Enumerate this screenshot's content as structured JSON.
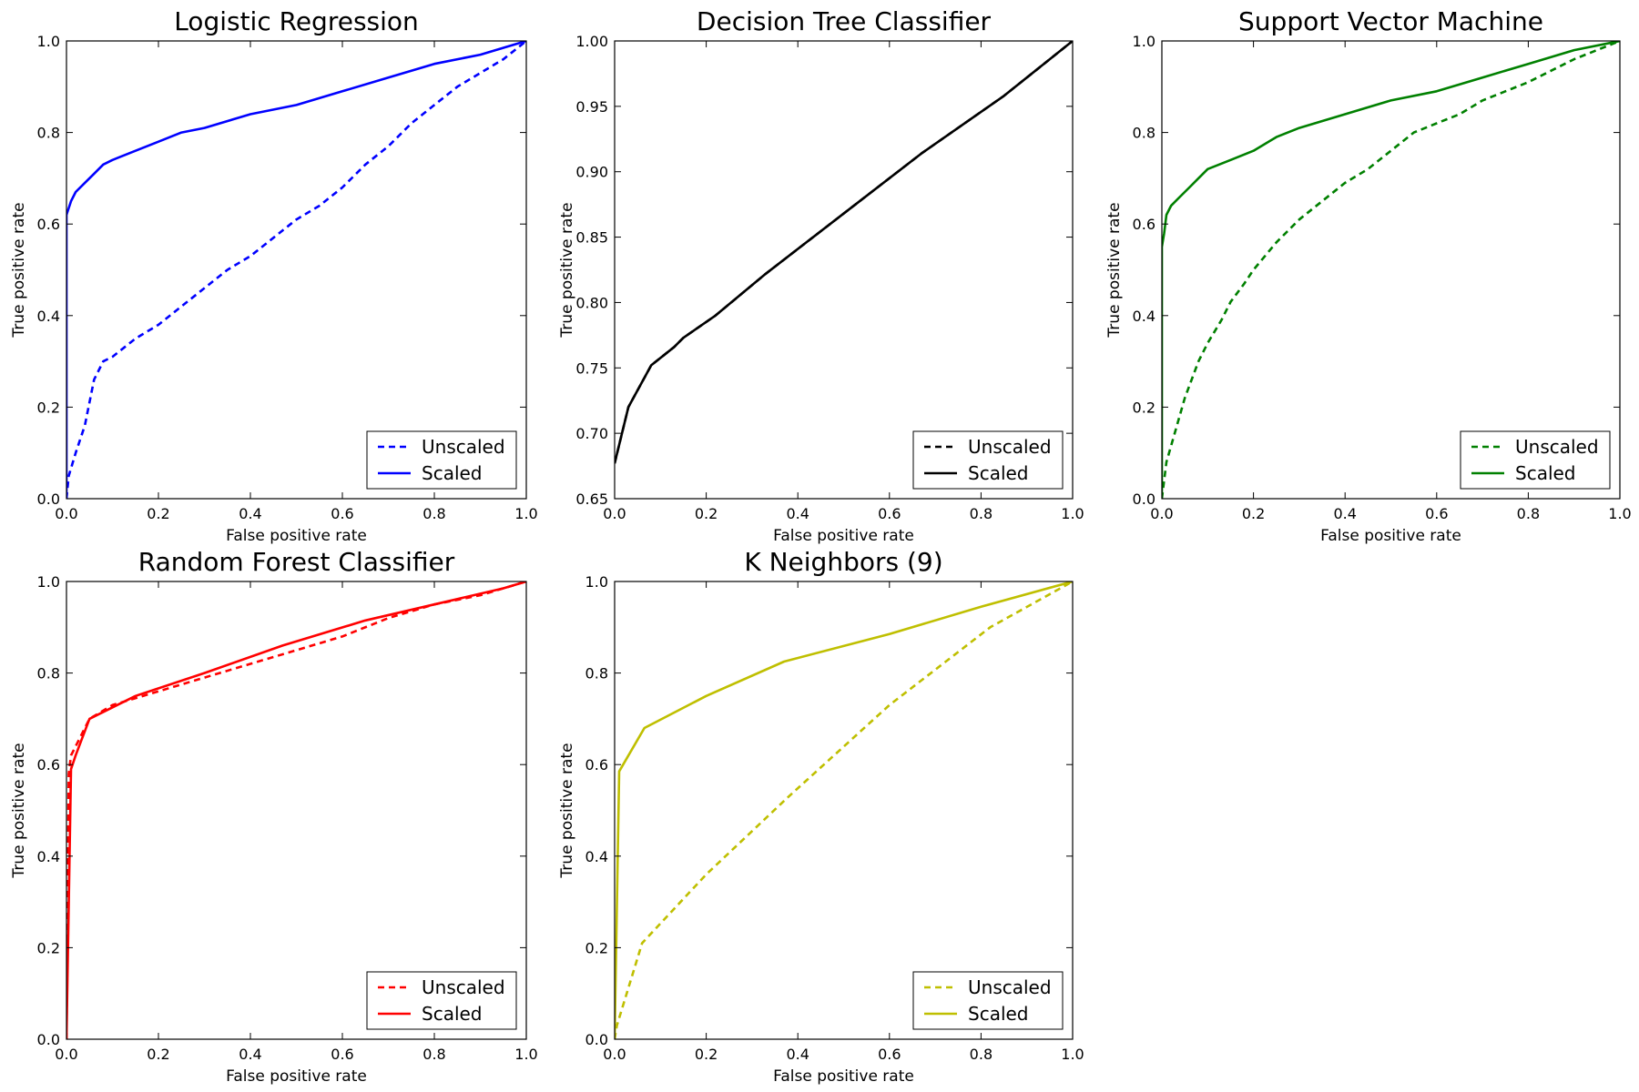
{
  "chart_data": [
    {
      "type": "line",
      "title": "Logistic Regression",
      "xlabel": "False positive rate",
      "ylabel": "True positive rate",
      "xlim": [
        0.0,
        1.0
      ],
      "ylim": [
        0.0,
        1.0
      ],
      "xticks": [
        "0.0",
        "0.2",
        "0.4",
        "0.6",
        "0.8",
        "1.0"
      ],
      "yticks": [
        "0.0",
        "0.2",
        "0.4",
        "0.6",
        "0.8",
        "1.0"
      ],
      "color": "#0000ff",
      "legend_position": "lower right",
      "series": [
        {
          "name": "Unscaled",
          "style": "dashed",
          "x": [
            0.0,
            0.005,
            0.02,
            0.04,
            0.06,
            0.08,
            0.1,
            0.15,
            0.2,
            0.25,
            0.3,
            0.35,
            0.4,
            0.45,
            0.5,
            0.55,
            0.6,
            0.65,
            0.7,
            0.75,
            0.8,
            0.85,
            0.9,
            0.95,
            1.0
          ],
          "y": [
            0.0,
            0.05,
            0.1,
            0.16,
            0.26,
            0.3,
            0.31,
            0.35,
            0.38,
            0.42,
            0.46,
            0.5,
            0.53,
            0.57,
            0.61,
            0.64,
            0.68,
            0.73,
            0.77,
            0.82,
            0.86,
            0.9,
            0.93,
            0.96,
            1.0
          ]
        },
        {
          "name": "Scaled",
          "style": "solid",
          "x": [
            0.0,
            0.0,
            0.01,
            0.02,
            0.04,
            0.06,
            0.08,
            0.1,
            0.15,
            0.2,
            0.25,
            0.3,
            0.4,
            0.5,
            0.6,
            0.7,
            0.8,
            0.9,
            1.0
          ],
          "y": [
            0.0,
            0.62,
            0.65,
            0.67,
            0.69,
            0.71,
            0.73,
            0.74,
            0.76,
            0.78,
            0.8,
            0.81,
            0.84,
            0.86,
            0.89,
            0.92,
            0.95,
            0.97,
            1.0
          ]
        }
      ]
    },
    {
      "type": "line",
      "title": "Decision Tree Classifier",
      "xlabel": "False positive rate",
      "ylabel": "True positive rate",
      "xlim": [
        0.0,
        1.0
      ],
      "ylim": [
        0.65,
        1.0
      ],
      "xticks": [
        "0.0",
        "0.2",
        "0.4",
        "0.6",
        "0.8",
        "1.0"
      ],
      "yticks": [
        "0.65",
        "0.70",
        "0.75",
        "0.80",
        "0.85",
        "0.90",
        "0.95",
        "1.00"
      ],
      "color": "#000000",
      "legend_position": "lower right",
      "series": [
        {
          "name": "Unscaled",
          "style": "dashed",
          "x": [
            0.0,
            0.03,
            0.08,
            0.13,
            0.15,
            0.22,
            0.33,
            0.5,
            0.67,
            0.85,
            1.0
          ],
          "y": [
            0.677,
            0.72,
            0.752,
            0.766,
            0.773,
            0.79,
            0.822,
            0.868,
            0.914,
            0.958,
            1.0
          ]
        },
        {
          "name": "Scaled",
          "style": "solid",
          "x": [
            0.0,
            0.03,
            0.08,
            0.13,
            0.15,
            0.22,
            0.33,
            0.5,
            0.67,
            0.85,
            1.0
          ],
          "y": [
            0.677,
            0.72,
            0.752,
            0.766,
            0.773,
            0.79,
            0.822,
            0.868,
            0.914,
            0.958,
            1.0
          ]
        }
      ]
    },
    {
      "type": "line",
      "title": "Support Vector Machine",
      "xlabel": "False positive rate",
      "ylabel": "True positive rate",
      "xlim": [
        0.0,
        1.0
      ],
      "ylim": [
        0.0,
        1.0
      ],
      "xticks": [
        "0.0",
        "0.2",
        "0.4",
        "0.6",
        "0.8",
        "1.0"
      ],
      "yticks": [
        "0.0",
        "0.2",
        "0.4",
        "0.6",
        "0.8",
        "1.0"
      ],
      "color": "#008000",
      "legend_position": "lower right",
      "series": [
        {
          "name": "Unscaled",
          "style": "dashed",
          "x": [
            0.0,
            0.01,
            0.03,
            0.05,
            0.08,
            0.1,
            0.13,
            0.15,
            0.18,
            0.2,
            0.25,
            0.3,
            0.35,
            0.4,
            0.45,
            0.5,
            0.55,
            0.6,
            0.65,
            0.7,
            0.8,
            0.9,
            1.0
          ],
          "y": [
            0.0,
            0.08,
            0.15,
            0.22,
            0.3,
            0.34,
            0.39,
            0.43,
            0.47,
            0.5,
            0.56,
            0.61,
            0.65,
            0.69,
            0.72,
            0.76,
            0.8,
            0.82,
            0.84,
            0.87,
            0.91,
            0.96,
            1.0
          ]
        },
        {
          "name": "Scaled",
          "style": "solid",
          "x": [
            0.0,
            0.0,
            0.005,
            0.01,
            0.02,
            0.04,
            0.06,
            0.08,
            0.1,
            0.15,
            0.2,
            0.25,
            0.3,
            0.4,
            0.5,
            0.6,
            0.7,
            0.8,
            0.9,
            1.0
          ],
          "y": [
            0.0,
            0.55,
            0.58,
            0.62,
            0.64,
            0.66,
            0.68,
            0.7,
            0.72,
            0.74,
            0.76,
            0.79,
            0.81,
            0.84,
            0.87,
            0.89,
            0.92,
            0.95,
            0.98,
            1.0
          ]
        }
      ]
    },
    {
      "type": "line",
      "title": "Random Forest Classifier",
      "xlabel": "False positive rate",
      "ylabel": "True positive rate",
      "xlim": [
        0.0,
        1.0
      ],
      "ylim": [
        0.0,
        1.0
      ],
      "xticks": [
        "0.0",
        "0.2",
        "0.4",
        "0.6",
        "0.8",
        "1.0"
      ],
      "yticks": [
        "0.0",
        "0.2",
        "0.4",
        "0.6",
        "0.8",
        "1.0"
      ],
      "color": "#ff0000",
      "legend_position": "lower right",
      "series": [
        {
          "name": "Unscaled",
          "style": "dashed",
          "x": [
            0.0,
            0.005,
            0.01,
            0.02,
            0.05,
            0.1,
            0.2,
            0.3,
            0.4,
            0.5,
            0.6,
            0.7,
            0.8,
            0.9,
            1.0
          ],
          "y": [
            0.0,
            0.58,
            0.62,
            0.64,
            0.7,
            0.73,
            0.76,
            0.79,
            0.82,
            0.85,
            0.88,
            0.92,
            0.95,
            0.97,
            1.0
          ]
        },
        {
          "name": "Scaled",
          "style": "solid",
          "x": [
            0.0,
            0.01,
            0.02,
            0.05,
            0.15,
            0.3,
            0.47,
            0.65,
            0.8,
            0.95,
            1.0
          ],
          "y": [
            0.0,
            0.59,
            0.62,
            0.7,
            0.75,
            0.8,
            0.86,
            0.915,
            0.95,
            0.985,
            1.0
          ]
        }
      ]
    },
    {
      "type": "line",
      "title": "K Neighbors (9)",
      "xlabel": "False positive rate",
      "ylabel": "True positive rate",
      "xlim": [
        0.0,
        1.0
      ],
      "ylim": [
        0.0,
        1.0
      ],
      "xticks": [
        "0.0",
        "0.2",
        "0.4",
        "0.6",
        "0.8",
        "1.0"
      ],
      "yticks": [
        "0.0",
        "0.2",
        "0.4",
        "0.6",
        "0.8",
        "1.0"
      ],
      "color": "#bfbf00",
      "legend_position": "lower right",
      "series": [
        {
          "name": "Unscaled",
          "style": "dashed",
          "x": [
            0.0,
            0.005,
            0.06,
            0.2,
            0.38,
            0.6,
            0.82,
            1.0
          ],
          "y": [
            0.0,
            0.03,
            0.21,
            0.36,
            0.53,
            0.73,
            0.9,
            1.0
          ]
        },
        {
          "name": "Scaled",
          "style": "solid",
          "x": [
            0.0,
            0.01,
            0.065,
            0.2,
            0.37,
            0.6,
            0.8,
            1.0
          ],
          "y": [
            0.0,
            0.585,
            0.68,
            0.75,
            0.825,
            0.885,
            0.945,
            1.0
          ]
        }
      ]
    }
  ]
}
